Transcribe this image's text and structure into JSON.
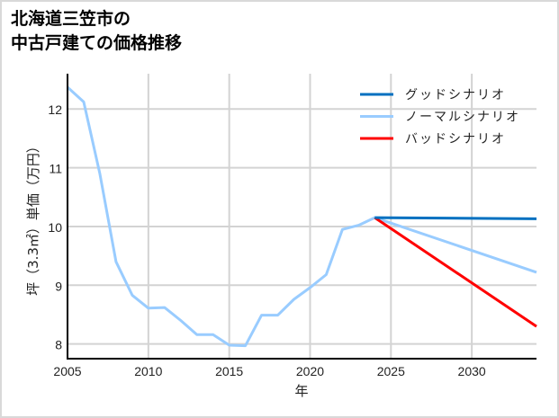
{
  "title": {
    "line1": "北海道三笠市の",
    "line2": "中古戸建ての価格推移"
  },
  "chart_data": {
    "type": "line",
    "title": "北海道三笠市の 中古戸建ての価格推移",
    "xlabel": "年",
    "ylabel": "坪（3.3㎡）単価（万円）",
    "xlim": [
      2005,
      2034
    ],
    "ylim": [
      7.75,
      12.6
    ],
    "x_ticks": [
      2005,
      2010,
      2015,
      2020,
      2025,
      2030
    ],
    "y_ticks": [
      8,
      9,
      10,
      11,
      12
    ],
    "grid": true,
    "legend_position": "upper right",
    "series": [
      {
        "name": "グッドシナリオ",
        "color": "#0070c0",
        "x": [
          2024,
          2034
        ],
        "values": [
          10.15,
          10.13
        ]
      },
      {
        "name": "ノーマルシナリオ",
        "color": "#99ccff",
        "x": [
          2005,
          2006,
          2007,
          2008,
          2009,
          2010,
          2011,
          2012,
          2013,
          2014,
          2015,
          2016,
          2017,
          2018,
          2019,
          2020,
          2021,
          2022,
          2023,
          2024,
          2034
        ],
        "values": [
          12.37,
          12.12,
          10.9,
          9.4,
          8.83,
          8.61,
          8.62,
          8.4,
          8.16,
          8.16,
          7.98,
          7.97,
          8.49,
          8.49,
          8.76,
          8.96,
          9.18,
          9.95,
          10.02,
          10.15,
          9.22
        ]
      },
      {
        "name": "バッドシナリオ",
        "color": "#ff0000",
        "x": [
          2024,
          2034
        ],
        "values": [
          10.15,
          8.3
        ]
      }
    ]
  },
  "axes": {
    "xlabel": "年",
    "ylabel": "坪（3.3㎡）単価（万円）",
    "x_tick_labels": [
      "2005",
      "2010",
      "2015",
      "2020",
      "2025",
      "2030"
    ],
    "y_tick_labels": [
      "8",
      "9",
      "10",
      "11",
      "12"
    ]
  },
  "legend": [
    {
      "label": "グッドシナリオ",
      "color": "#0070c0"
    },
    {
      "label": "ノーマルシナリオ",
      "color": "#99ccff"
    },
    {
      "label": "バッドシナリオ",
      "color": "#ff0000"
    }
  ]
}
